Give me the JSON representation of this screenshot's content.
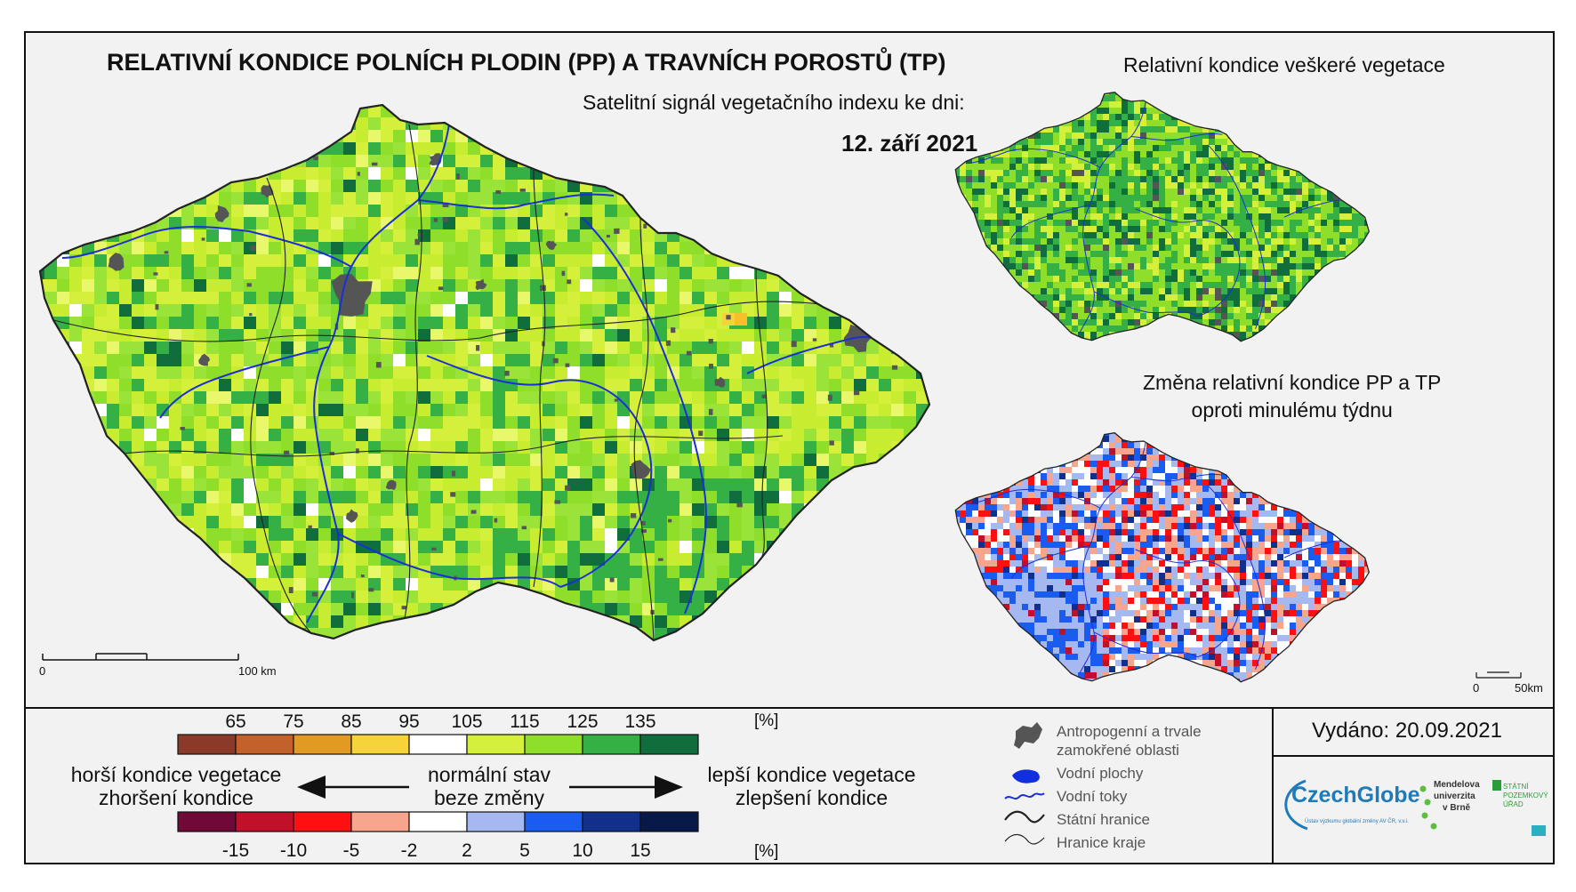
{
  "main_map": {
    "title": "RELATIVNÍ KONDICE POLNÍCH PLODIN (PP) A TRAVNÍCH POROSTŮ (TP)",
    "subtitle": "Satelitní signál vegetačního indexu ke dni:",
    "date": "12. září 2021",
    "scale_start": "0",
    "scale_end": "100 km"
  },
  "inset_vegetation": {
    "title": "Relativní kondice veškeré vegetace"
  },
  "inset_change": {
    "title_line1": "Změna relativní kondice PP a TP",
    "title_line2": "oproti minulému týdnu",
    "scale_start": "0",
    "scale_end": "50km"
  },
  "legend_condition": {
    "ticks": [
      "65",
      "75",
      "85",
      "95",
      "105",
      "115",
      "125",
      "135"
    ],
    "unit": "[%]",
    "colors": [
      "#8b3a2a",
      "#c4602a",
      "#e39a22",
      "#f6d33a",
      "#ffffff",
      "#d4f03a",
      "#8fdf2a",
      "#35b045",
      "#0f6e3c"
    ]
  },
  "legend_change": {
    "ticks": [
      "-15",
      "-10",
      "-5",
      "-2",
      "2",
      "5",
      "10",
      "15"
    ],
    "unit": "[%]",
    "colors": [
      "#700838",
      "#c0102a",
      "#ff1010",
      "#f7a58c",
      "#ffffff",
      "#a6b8f0",
      "#1a5cf0",
      "#10308c",
      "#081848"
    ]
  },
  "arrows": {
    "left_line1": "horší kondice vegetace",
    "left_line2": "zhoršení kondice",
    "center_line1": "normální stav",
    "center_line2": "beze změny",
    "right_line1": "lepší kondice vegetace",
    "right_line2": "zlepšení kondice"
  },
  "map_legend": {
    "urban_line1": "Antropogenní a trvale",
    "urban_line2": "zamokřené oblasti",
    "water_bodies": "Vodní plochy",
    "rivers": "Vodní toky",
    "state_border": "Státní hranice",
    "region_border": "Hranice kraje"
  },
  "issued": "Vydáno: 20.09.2021",
  "logos": {
    "czechglobe": "CzechGlobe",
    "czechglobe_sub": "Ústav výzkumu globální změny AV ČR, v.v.i.",
    "mendel_line1": "Mendelova",
    "mendel_line2": "univerzita",
    "mendel_line3": "v Brně",
    "spu_line1": "STÁTNÍ",
    "spu_line2": "POZEMKOVÝ",
    "spu_line3": "ÚŘAD"
  },
  "colors": {
    "river": "#1a2fd6",
    "urban": "#555555",
    "border": "#222222"
  }
}
